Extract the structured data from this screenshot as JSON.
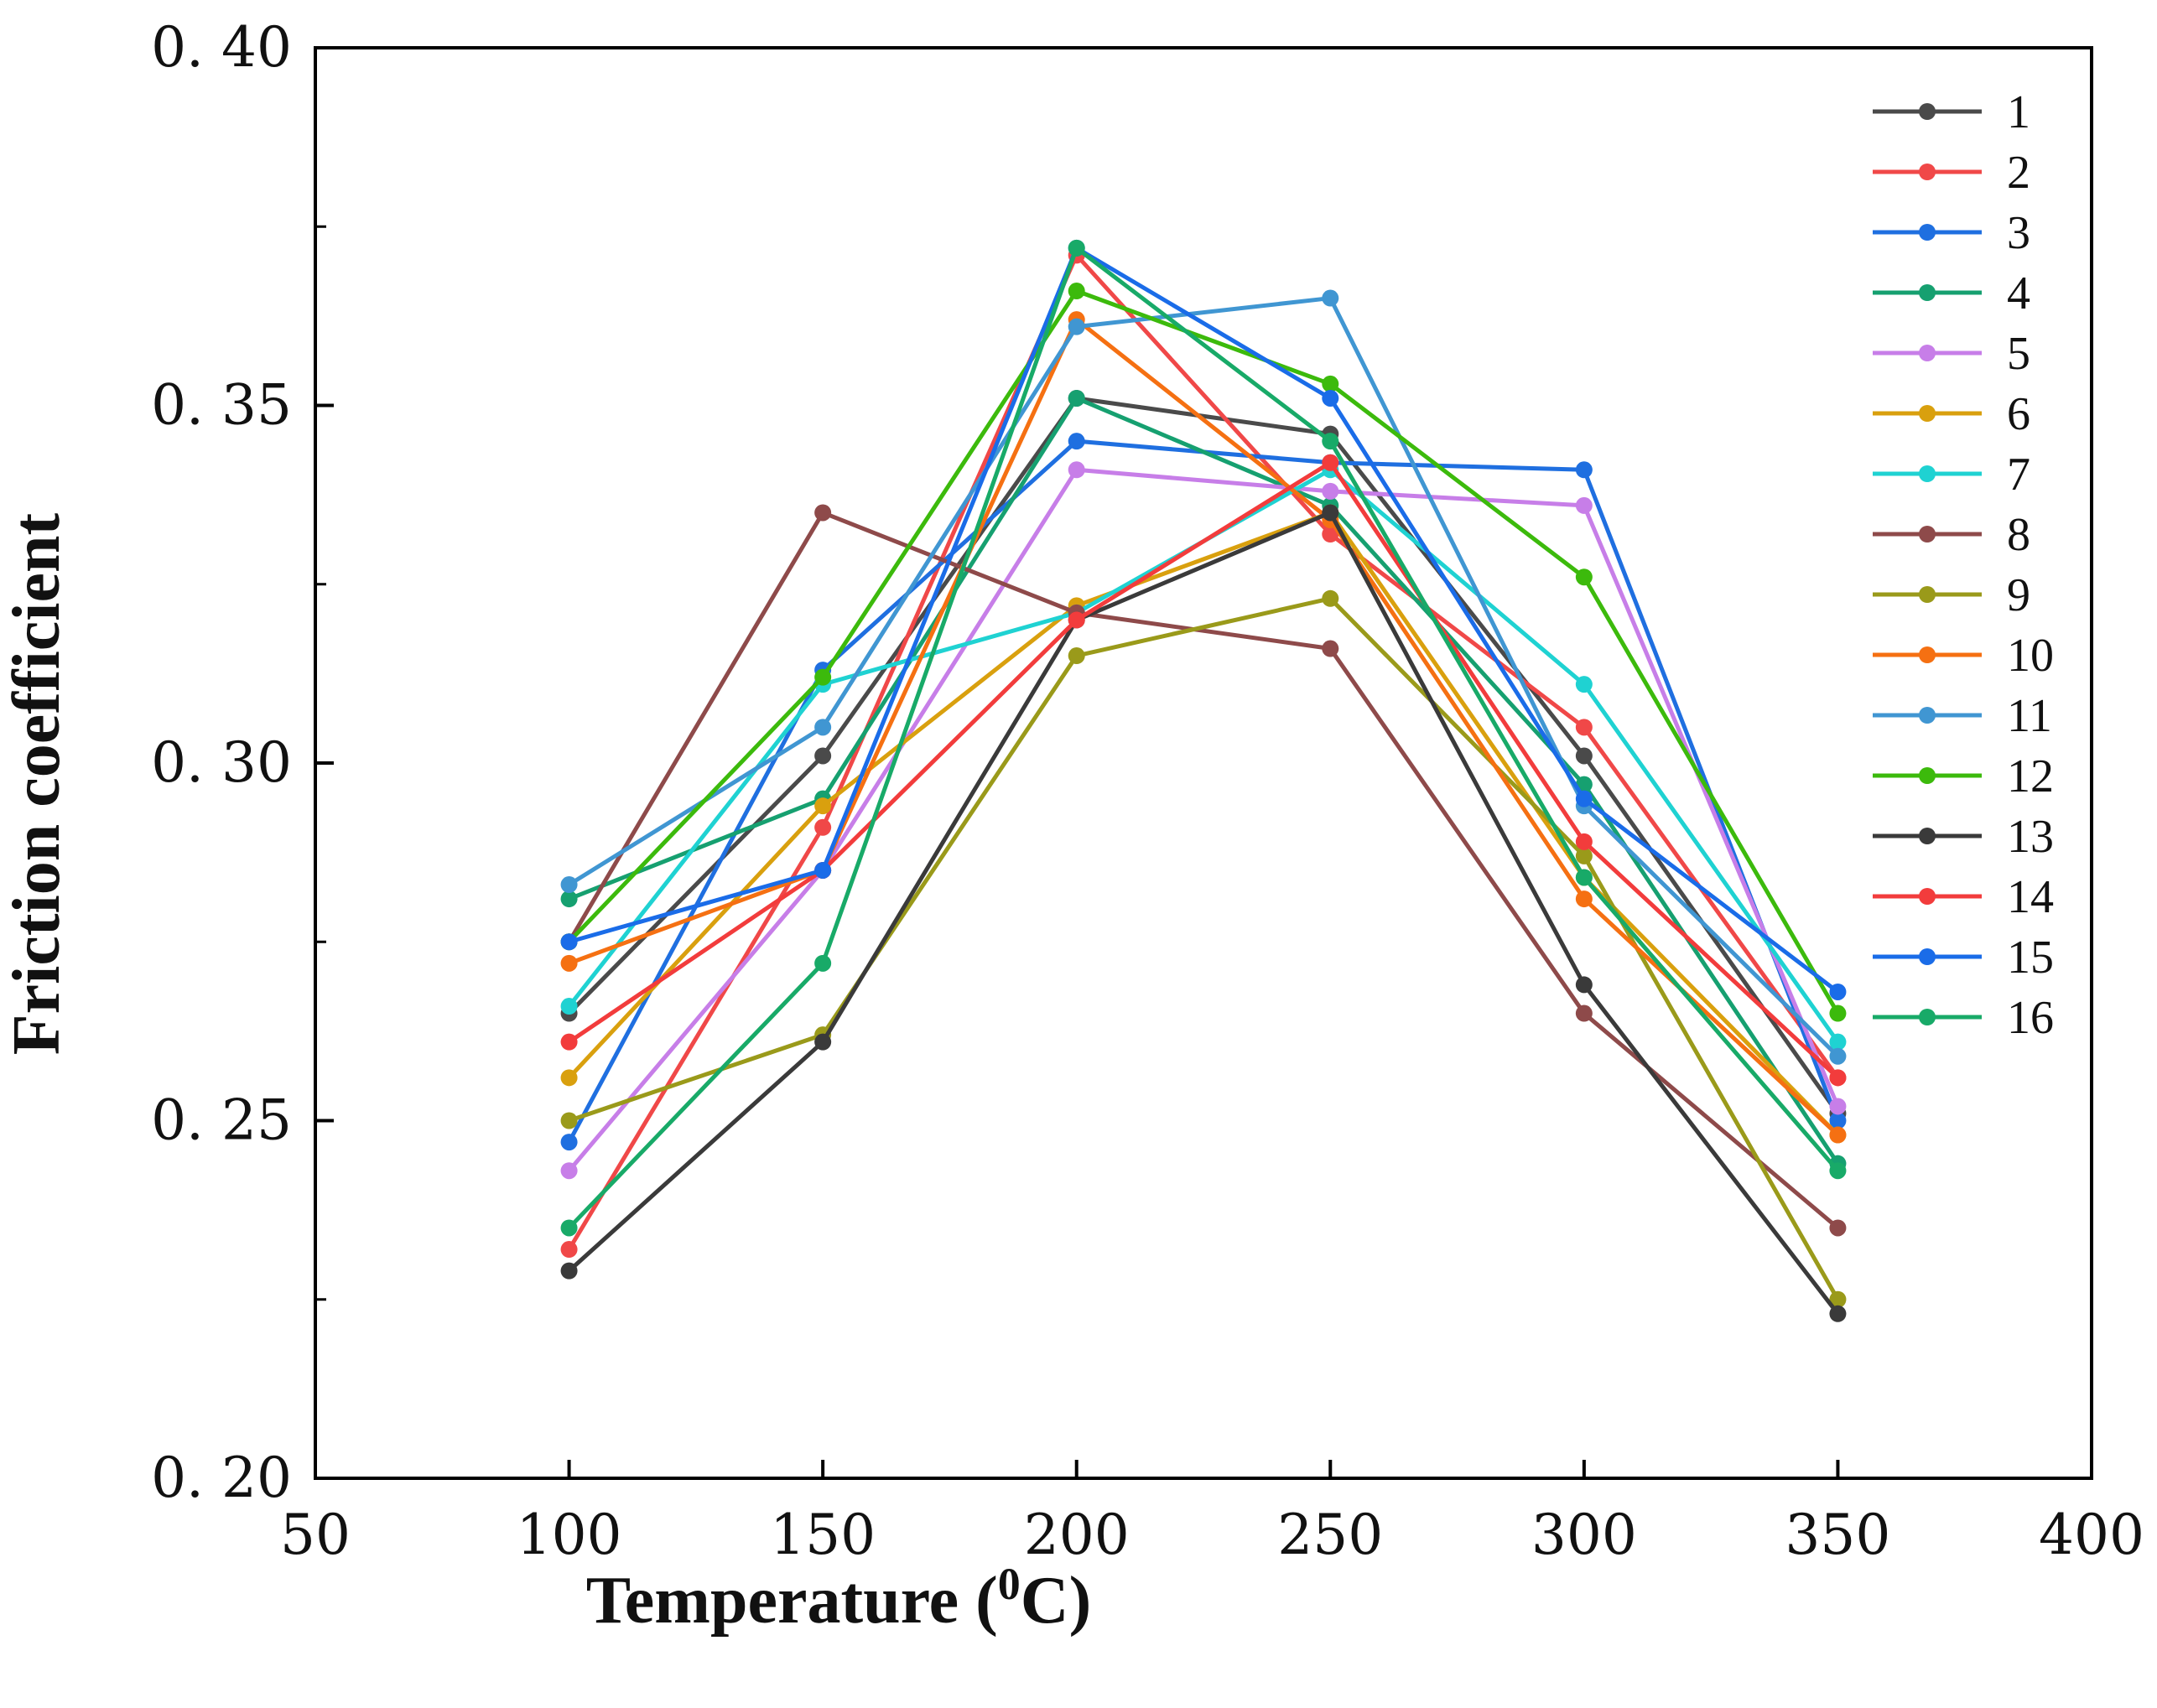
{
  "chart_data": {
    "type": "line",
    "title": "",
    "xlabel": "Temperature (",
    "xlabel_sup": "0",
    "xlabel_tail": "C)",
    "ylabel": "Friction coefficient",
    "xlim": [
      50,
      400
    ],
    "ylim": [
      0.2,
      0.4
    ],
    "x_ticks": [
      50,
      100,
      150,
      200,
      250,
      300,
      350,
      400
    ],
    "x_tick_labels": [
      "50",
      "100",
      "150",
      "200",
      "250",
      "300",
      "350",
      "400"
    ],
    "y_ticks": [
      0.2,
      0.25,
      0.3,
      0.35,
      0.4
    ],
    "y_tick_labels": [
      "0. 20",
      "0. 25",
      "0. 30",
      "0. 35",
      "0. 40"
    ],
    "y_minor_ticks": [
      0.225,
      0.275,
      0.325,
      0.375
    ],
    "legend_position": "top-right",
    "x": [
      100,
      150,
      200,
      250,
      300,
      350
    ],
    "series": [
      {
        "name": "1",
        "color": "#4a4a4a",
        "values": [
          0.265,
          0.301,
          0.351,
          0.346,
          0.301,
          0.251
        ]
      },
      {
        "name": "2",
        "color": "#f04848",
        "values": [
          0.232,
          0.291,
          0.371,
          0.332,
          0.305,
          0.256
        ]
      },
      {
        "name": "3",
        "color": "#1f6fe0",
        "values": [
          0.247,
          0.313,
          0.345,
          0.342,
          0.341,
          0.25
        ]
      },
      {
        "name": "4",
        "color": "#16a070",
        "values": [
          0.281,
          0.295,
          0.351,
          0.336,
          0.297,
          0.244
        ]
      },
      {
        "name": "5",
        "color": "#c77ee8",
        "values": [
          0.243,
          0.285,
          0.341,
          0.338,
          0.336,
          0.252
        ]
      },
      {
        "name": "6",
        "color": "#d9a00e",
        "values": [
          0.256,
          0.294,
          0.322,
          0.335,
          0.284,
          0.248
        ]
      },
      {
        "name": "7",
        "color": "#1fd2d2",
        "values": [
          0.266,
          0.311,
          0.321,
          0.341,
          0.311,
          0.261
        ]
      },
      {
        "name": "8",
        "color": "#8e4a4a",
        "values": [
          0.275,
          0.335,
          0.321,
          0.316,
          0.265,
          0.235
        ]
      },
      {
        "name": "9",
        "color": "#9a9a1a",
        "values": [
          0.25,
          0.262,
          0.315,
          0.323,
          0.287,
          0.225
        ]
      },
      {
        "name": "10",
        "color": "#f57012",
        "values": [
          0.272,
          0.285,
          0.362,
          0.334,
          0.281,
          0.248
        ]
      },
      {
        "name": "11",
        "color": "#4096d2",
        "values": [
          0.283,
          0.305,
          0.361,
          0.365,
          0.294,
          0.259
        ]
      },
      {
        "name": "12",
        "color": "#3cba0c",
        "values": [
          0.275,
          0.312,
          0.366,
          0.353,
          0.326,
          0.265
        ]
      },
      {
        "name": "13",
        "color": "#3a3a3a",
        "values": [
          0.229,
          0.261,
          0.32,
          0.335,
          0.269,
          0.223
        ]
      },
      {
        "name": "14",
        "color": "#f23c3c",
        "values": [
          0.261,
          0.285,
          0.32,
          0.342,
          0.289,
          0.256
        ]
      },
      {
        "name": "15",
        "color": "#1a6ce8",
        "values": [
          0.275,
          0.285,
          0.372,
          0.351,
          0.295,
          0.268
        ]
      },
      {
        "name": "16",
        "color": "#18aa68",
        "values": [
          0.235,
          0.272,
          0.372,
          0.345,
          0.284,
          0.243
        ]
      }
    ]
  }
}
